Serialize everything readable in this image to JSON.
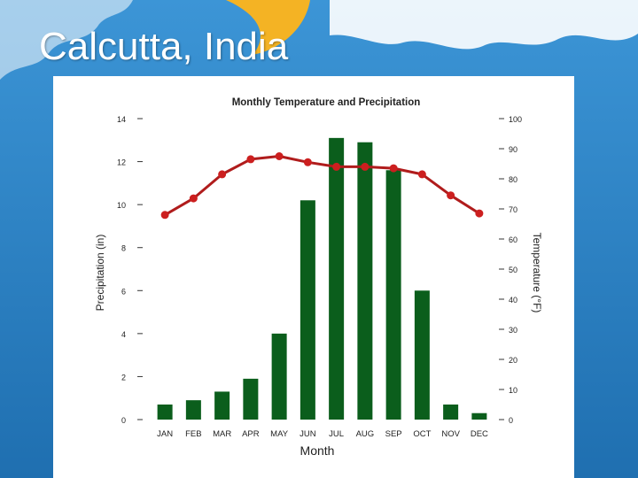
{
  "slide": {
    "title": "Calcutta, India"
  },
  "colors": {
    "background": "#2b7fc4",
    "bar": "#0b5e1c",
    "line": "#b01c1c",
    "marker": "#cc1f1f"
  },
  "chart_data": {
    "type": "bar",
    "title": "Monthly Temperature and Precipitation",
    "xlabel": "Month",
    "ylabel": "Precipitation (in)",
    "y2label": "Temperature (°F)",
    "categories": [
      "JAN",
      "FEB",
      "MAR",
      "APR",
      "MAY",
      "JUN",
      "JUL",
      "AUG",
      "SEP",
      "OCT",
      "NOV",
      "DEC"
    ],
    "ylim": [
      0,
      14
    ],
    "y2lim": [
      0,
      100
    ],
    "yticks": [
      "0",
      "2",
      "4",
      "6",
      "8",
      "10",
      "12",
      "14"
    ],
    "y2ticks": [
      "0",
      "10",
      "20",
      "30",
      "40",
      "50",
      "60",
      "70",
      "80",
      "90",
      "100"
    ],
    "series": [
      {
        "name": "Precipitation (in)",
        "type": "bar",
        "axis": "left",
        "values": [
          0.7,
          0.9,
          1.3,
          1.9,
          4.0,
          10.2,
          13.1,
          12.9,
          11.6,
          6.0,
          0.7,
          0.3
        ]
      },
      {
        "name": "Temperature (°F)",
        "type": "line",
        "axis": "right",
        "values": [
          68,
          73.5,
          81.5,
          86.5,
          87.5,
          85.5,
          84,
          84,
          83.5,
          81.5,
          74.5,
          68.5
        ]
      }
    ]
  }
}
